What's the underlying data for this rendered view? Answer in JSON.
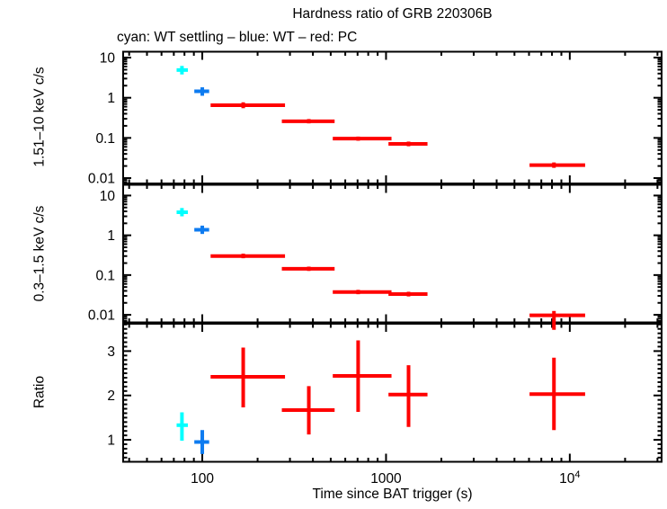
{
  "chart_data": {
    "type": "scatter",
    "title": "Hardness ratio of GRB 220306B",
    "subtitle": "cyan: WT settling – blue: WT – red: PC",
    "xlabel": "Time since BAT trigger (s)",
    "colors": {
      "settling": "#00ffff",
      "wt": "#0d7bf0",
      "pc": "#ff0000",
      "axes": "#000000"
    },
    "x_axis": {
      "scale": "log",
      "min": 37.1,
      "max": 31600,
      "major_ticks": [
        100,
        1000,
        10000
      ],
      "major_labels": [
        "100",
        "1000",
        "10^4"
      ]
    },
    "panels": [
      {
        "name": "hard-band",
        "ylabel": "1.51–10 keV c/s",
        "yscale": "log",
        "ymin": 0.00735,
        "ymax": 14.0,
        "ytick_values": [
          10,
          1,
          0.1,
          0.01
        ],
        "ytick_labels": [
          "10",
          "1",
          "0.1",
          "0.01"
        ],
        "series": [
          {
            "name": "WT settling",
            "color_key": "settling",
            "points": [
              {
                "t": 77.5,
                "t_lo": 72.5,
                "t_hi": 83.5,
                "v": 4.9,
                "v_lo": 3.8,
                "v_hi": 6.2
              }
            ]
          },
          {
            "name": "WT",
            "color_key": "wt",
            "points": [
              {
                "t": 100,
                "t_lo": 90.5,
                "t_hi": 109,
                "v": 1.45,
                "v_lo": 1.12,
                "v_hi": 1.82
              }
            ]
          },
          {
            "name": "PC",
            "color_key": "pc",
            "points": [
              {
                "t": 167,
                "t_lo": 111,
                "t_hi": 282,
                "v": 0.65,
                "v_lo": 0.55,
                "v_hi": 0.77
              },
              {
                "t": 380,
                "t_lo": 271,
                "t_hi": 525,
                "v": 0.26,
                "v_lo": 0.23,
                "v_hi": 0.295
              },
              {
                "t": 705,
                "t_lo": 513,
                "t_hi": 1071,
                "v": 0.096,
                "v_lo": 0.085,
                "v_hi": 0.108
              },
              {
                "t": 1326,
                "t_lo": 1031,
                "t_hi": 1681,
                "v": 0.071,
                "v_lo": 0.062,
                "v_hi": 0.081
              },
              {
                "t": 8200,
                "t_lo": 6040,
                "t_hi": 12120,
                "v": 0.021,
                "v_lo": 0.018,
                "v_hi": 0.0245
              }
            ]
          }
        ]
      },
      {
        "name": "soft-band",
        "ylabel": "0.3–1.5 keV c/s",
        "yscale": "log",
        "ymin": 0.00645,
        "ymax": 18.6,
        "ytick_values": [
          10,
          1,
          0.1,
          0.01
        ],
        "ytick_labels": [
          "10",
          "1",
          "0.1",
          "0.01"
        ],
        "series": [
          {
            "name": "WT settling",
            "color_key": "settling",
            "points": [
              {
                "t": 77.5,
                "t_lo": 72.5,
                "t_hi": 83.5,
                "v": 3.8,
                "v_lo": 3.0,
                "v_hi": 4.85
              }
            ]
          },
          {
            "name": "WT",
            "color_key": "wt",
            "points": [
              {
                "t": 100,
                "t_lo": 90.5,
                "t_hi": 109,
                "v": 1.38,
                "v_lo": 1.08,
                "v_hi": 1.75
              }
            ]
          },
          {
            "name": "PC",
            "color_key": "pc",
            "points": [
              {
                "t": 167,
                "t_lo": 111,
                "t_hi": 282,
                "v": 0.3,
                "v_lo": 0.265,
                "v_hi": 0.345
              },
              {
                "t": 380,
                "t_lo": 271,
                "t_hi": 525,
                "v": 0.144,
                "v_lo": 0.127,
                "v_hi": 0.163
              },
              {
                "t": 705,
                "t_lo": 513,
                "t_hi": 1071,
                "v": 0.0374,
                "v_lo": 0.033,
                "v_hi": 0.0425
              },
              {
                "t": 1326,
                "t_lo": 1031,
                "t_hi": 1681,
                "v": 0.0332,
                "v_lo": 0.029,
                "v_hi": 0.038
              },
              {
                "t": 8200,
                "t_lo": 6040,
                "t_hi": 12120,
                "v": 0.0097,
                "v_lo": 0.0042,
                "v_hi": 0.0125
              }
            ]
          }
        ]
      },
      {
        "name": "ratio",
        "ylabel": "Ratio",
        "yscale": "linear",
        "ymin": 0.505,
        "ymax": 3.616,
        "ytick_values": [
          3,
          2,
          1
        ],
        "ytick_labels": [
          "3",
          "2",
          "1"
        ],
        "minor_step": 0.1,
        "series": [
          {
            "name": "WT settling",
            "color_key": "settling",
            "points": [
              {
                "t": 77.5,
                "t_lo": 72.5,
                "t_hi": 83.5,
                "v": 1.33,
                "v_lo": 0.98,
                "v_hi": 1.62
              }
            ]
          },
          {
            "name": "WT",
            "color_key": "wt",
            "points": [
              {
                "t": 100,
                "t_lo": 90.5,
                "t_hi": 109,
                "v": 0.95,
                "v_lo": 0.68,
                "v_hi": 1.22
              }
            ]
          },
          {
            "name": "PC",
            "color_key": "pc",
            "points": [
              {
                "t": 167,
                "t_lo": 111,
                "t_hi": 282,
                "v": 2.42,
                "v_lo": 1.73,
                "v_hi": 3.08
              },
              {
                "t": 380,
                "t_lo": 271,
                "t_hi": 525,
                "v": 1.67,
                "v_lo": 1.12,
                "v_hi": 2.21
              },
              {
                "t": 705,
                "t_lo": 513,
                "t_hi": 1071,
                "v": 2.44,
                "v_lo": 1.63,
                "v_hi": 3.24
              },
              {
                "t": 1326,
                "t_lo": 1031,
                "t_hi": 1681,
                "v": 2.02,
                "v_lo": 1.29,
                "v_hi": 2.68
              },
              {
                "t": 8200,
                "t_lo": 6040,
                "t_hi": 12120,
                "v": 2.03,
                "v_lo": 1.22,
                "v_hi": 2.85
              }
            ]
          }
        ]
      }
    ]
  }
}
